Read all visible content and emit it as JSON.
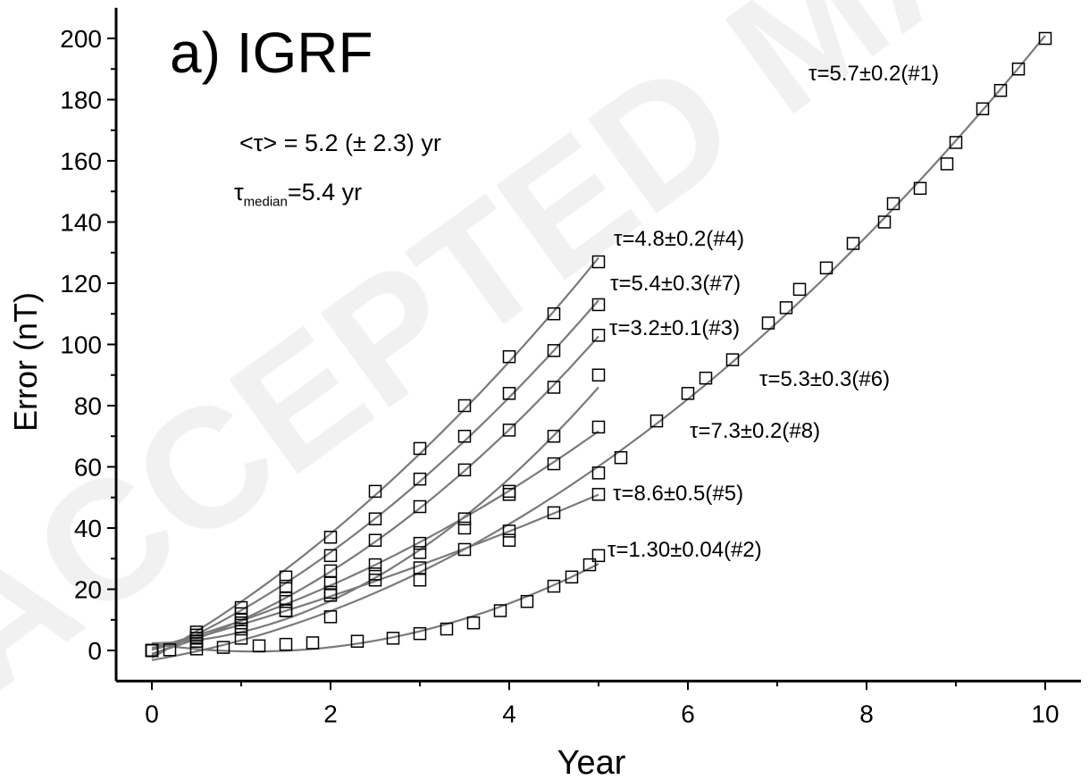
{
  "watermark": "ACCEPTED MANUSCRIPT",
  "chart_data": {
    "type": "scatter",
    "panel_label": "a) IGRF",
    "xlabel": "Year",
    "ylabel": "Error (nT)",
    "xlim": [
      -0.4,
      10.4
    ],
    "ylim": [
      -10,
      210
    ],
    "x_ticks": [
      0,
      2,
      4,
      6,
      8,
      10
    ],
    "y_ticks": [
      0,
      20,
      40,
      60,
      80,
      100,
      120,
      140,
      160,
      180,
      200
    ],
    "grid": false,
    "mean_tau_prefix": "<τ>",
    "mean_tau_value": "= 5.2 (± 2.3) yr",
    "median_tau_symbol": "τ",
    "median_tau_sub": "median",
    "median_tau_value": "=5.4 yr",
    "series": [
      {
        "label": "τ=5.7±0.2(#1)",
        "x": [
          0,
          1,
          2,
          3,
          4,
          5,
          5.25,
          5.65,
          6.0,
          6.2,
          6.5,
          6.9,
          7.1,
          7.25,
          7.55,
          7.85,
          8.2,
          8.3,
          8.6,
          8.9,
          9.0,
          9.3,
          9.5,
          9.7,
          10
        ],
        "y": [
          0,
          4,
          11,
          23,
          36,
          58,
          63,
          75,
          84,
          89,
          95,
          107,
          112,
          118,
          125,
          133,
          140,
          146,
          151,
          159,
          166,
          177,
          183,
          190,
          200
        ]
      },
      {
        "label": "τ=1.30±0.04(#2)",
        "x": [
          0,
          0.2,
          0.5,
          0.8,
          1.2,
          1.5,
          1.8,
          2.3,
          2.7,
          3.0,
          3.3,
          3.6,
          3.9,
          4.2,
          4.5,
          4.7,
          4.9,
          5.0
        ],
        "y": [
          0,
          0.2,
          0.5,
          1,
          1.5,
          2,
          2.5,
          3,
          4,
          5.5,
          7,
          9,
          13,
          16,
          21,
          24,
          28,
          31
        ]
      },
      {
        "label": "τ=3.2±0.1(#3)",
        "x": [
          0,
          0.5,
          1,
          1.5,
          2,
          2.5,
          3,
          3.5,
          4,
          4.5,
          5
        ],
        "y": [
          0,
          3,
          9,
          17,
          26,
          36,
          47,
          59,
          72,
          86,
          103
        ]
      },
      {
        "label": "τ=4.8±0.2(#4)",
        "x": [
          0,
          0.5,
          1,
          1.5,
          2,
          2.5,
          3,
          3.5,
          4,
          4.5,
          5
        ],
        "y": [
          0,
          6,
          14,
          24,
          37,
          52,
          66,
          80,
          96,
          110,
          127
        ]
      },
      {
        "label": "τ=8.6±0.5(#5)",
        "x": [
          0,
          0.5,
          1,
          1.5,
          2,
          2.5,
          3,
          3.5,
          4,
          4.5,
          5
        ],
        "y": [
          0,
          4,
          9,
          13,
          18,
          23,
          27,
          33,
          39,
          45,
          51
        ]
      },
      {
        "label": "τ=5.3±0.3(#6)",
        "x": [
          0,
          0.5,
          1,
          1.5,
          2,
          2.5,
          3,
          3.5,
          4,
          4.5,
          5
        ],
        "y": [
          0,
          3,
          7,
          13,
          19,
          25,
          32,
          40,
          52,
          70,
          90
        ]
      },
      {
        "label": "τ=5.4±0.3(#7)",
        "x": [
          0,
          0.5,
          1,
          1.5,
          2,
          2.5,
          3,
          3.5,
          4,
          4.5,
          5
        ],
        "y": [
          0,
          5,
          12,
          21,
          31,
          43,
          56,
          70,
          84,
          98,
          113
        ]
      },
      {
        "label": "τ=7.3±0.2(#8)",
        "x": [
          0,
          0.5,
          1,
          1.5,
          2,
          2.5,
          3,
          3.5,
          4,
          4.5,
          5
        ],
        "y": [
          0,
          5,
          10,
          16,
          22,
          28,
          35,
          43,
          51,
          61,
          73
        ]
      }
    ]
  }
}
